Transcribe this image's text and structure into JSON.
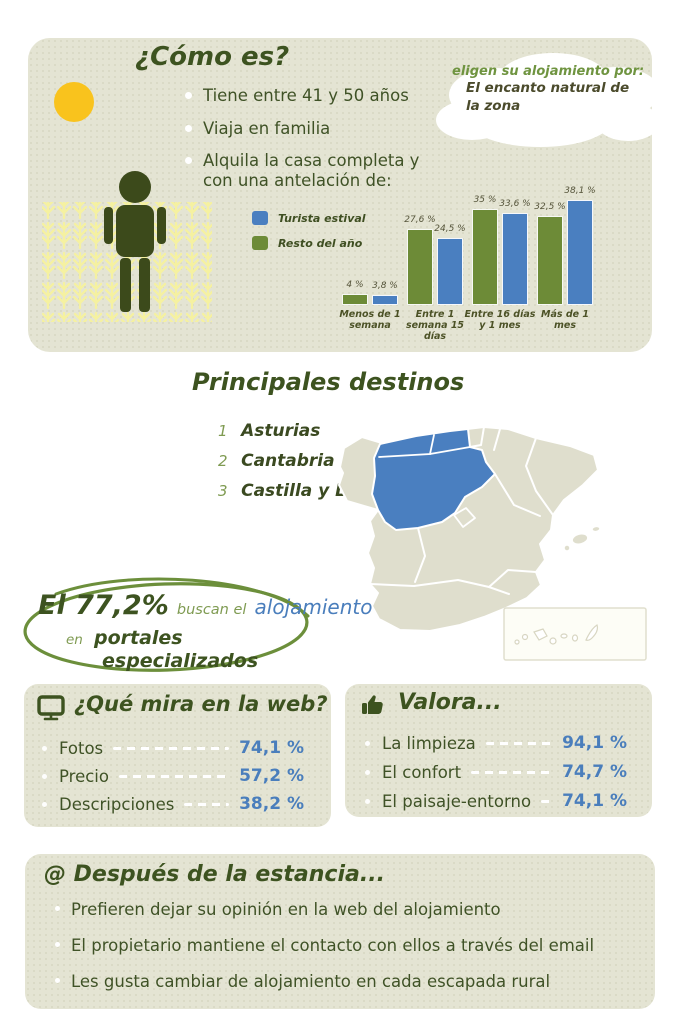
{
  "colors": {
    "panel_bg": "#e4e4d3",
    "dark_green": "#3d5320",
    "olive_green": "#7f9b52",
    "accent_blue": "#4a7ebc",
    "bar_green": "#6d8b37",
    "bar_blue": "#4a7fc0",
    "sun_yellow": "#f9c31d",
    "wheat_yellow": "#f5f1a1",
    "map_base": "#dfdecd"
  },
  "profile": {
    "title": "¿Cómo es?",
    "bullets": [
      "Tiene entre 41 y 50 años",
      "Viaja en familia",
      "Alquila la casa completa y con una antelación de:"
    ],
    "cloud_intro": "eligen su alojamiento por:",
    "cloud_reason": "El encanto natural de la zona"
  },
  "chart_data": {
    "type": "bar",
    "categories": [
      "Menos de 1\nsemana",
      "Entre 1\nsemana 15\ndías",
      "Entre 16 días\ny 1 mes",
      "Más de 1 mes"
    ],
    "series": [
      {
        "name": "Resto del año",
        "color": "#6d8b37",
        "values": [
          4,
          27.6,
          35,
          32.5
        ],
        "labels": [
          "4 %",
          "27,6 %",
          "35 %",
          "32,5 %"
        ]
      },
      {
        "name": "Turista estival",
        "color": "#4a7fc0",
        "values": [
          3.8,
          24.5,
          33.6,
          38.1
        ],
        "labels": [
          "3,8 %",
          "24,5 %",
          "33,6 %",
          "38,1 %"
        ]
      }
    ],
    "legend": [
      {
        "label": "Turista estival",
        "color": "#4a7fc0"
      },
      {
        "label": "Resto del año",
        "color": "#6d8b37"
      }
    ],
    "unit": "%",
    "ylim": [
      0,
      40
    ],
    "grid": false,
    "legend_position": "left"
  },
  "destinations": {
    "title": "Principales destinos",
    "items": [
      {
        "rank": "1",
        "name": "Asturias"
      },
      {
        "rank": "2",
        "name": "Cantabria"
      },
      {
        "rank": "3",
        "name": "Castilla y León"
      }
    ],
    "highlighted_regions": [
      "Asturias",
      "Cantabria",
      "Castilla y León"
    ],
    "map_highlight_color": "#4a7fc0"
  },
  "portals": {
    "pct": "El 77,2%",
    "mid": "buscan el",
    "highlight": "alojamiento",
    "prefix2": "en",
    "bold2": "portales",
    "bold3": "especializados"
  },
  "web_box": {
    "title": "¿Qué mira en la web?",
    "items": [
      {
        "label": "Fotos",
        "value": "74,1 %"
      },
      {
        "label": "Precio",
        "value": "57,2 %"
      },
      {
        "label": "Descripciones",
        "value": "38,2 %"
      }
    ]
  },
  "valora_box": {
    "title": "Valora...",
    "items": [
      {
        "label": "La limpieza",
        "value": "94,1 %"
      },
      {
        "label": "El confort",
        "value": "74,7 %"
      },
      {
        "label": "El paisaje-entorno",
        "value": "74,1 %"
      }
    ]
  },
  "after_box": {
    "title": "@ Después de la estancia...",
    "bullets": [
      "Prefieren dejar su opinión en la web del alojamiento",
      "El propietario mantiene el contacto con ellos a través del email",
      "Les gusta cambiar de alojamiento en cada escapada rural"
    ]
  }
}
